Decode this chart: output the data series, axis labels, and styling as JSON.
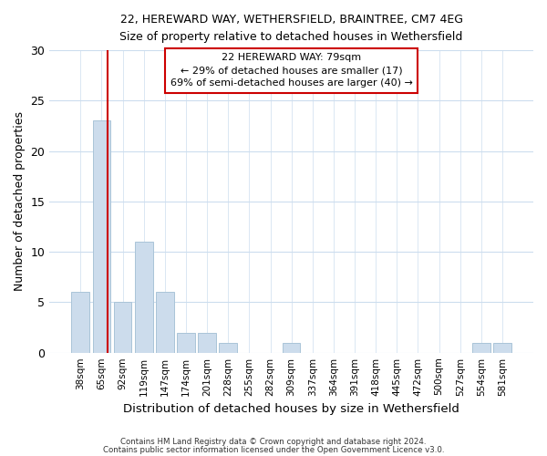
{
  "title1": "22, HEREWARD WAY, WETHERSFIELD, BRAINTREE, CM7 4EG",
  "title2": "Size of property relative to detached houses in Wethersfield",
  "xlabel": "Distribution of detached houses by size in Wethersfield",
  "ylabel": "Number of detached properties",
  "categories": [
    "38sqm",
    "65sqm",
    "92sqm",
    "119sqm",
    "147sqm",
    "174sqm",
    "201sqm",
    "228sqm",
    "255sqm",
    "282sqm",
    "309sqm",
    "337sqm",
    "364sqm",
    "391sqm",
    "418sqm",
    "445sqm",
    "472sqm",
    "500sqm",
    "527sqm",
    "554sqm",
    "581sqm"
  ],
  "values": [
    6,
    23,
    5,
    11,
    6,
    2,
    2,
    1,
    0,
    0,
    1,
    0,
    0,
    0,
    0,
    0,
    0,
    0,
    0,
    1,
    1
  ],
  "bar_color": "#ccdcec",
  "bar_edge_color": "#aac4d8",
  "highlight_bar_index": 1,
  "highlight_color": "#cc0000",
  "annotation_line1": "22 HEREWARD WAY: 79sqm",
  "annotation_line2": "← 29% of detached houses are smaller (17)",
  "annotation_line3": "69% of semi-detached houses are larger (40) →",
  "annotation_box_color": "#ffffff",
  "annotation_box_edge": "#cc0000",
  "footer1": "Contains HM Land Registry data © Crown copyright and database right 2024.",
  "footer2": "Contains public sector information licensed under the Open Government Licence v3.0.",
  "ylim": [
    0,
    30
  ],
  "yticks": [
    0,
    5,
    10,
    15,
    20,
    25,
    30
  ],
  "background_color": "#ffffff",
  "plot_background": "#ffffff",
  "grid_color": "#ccddee"
}
